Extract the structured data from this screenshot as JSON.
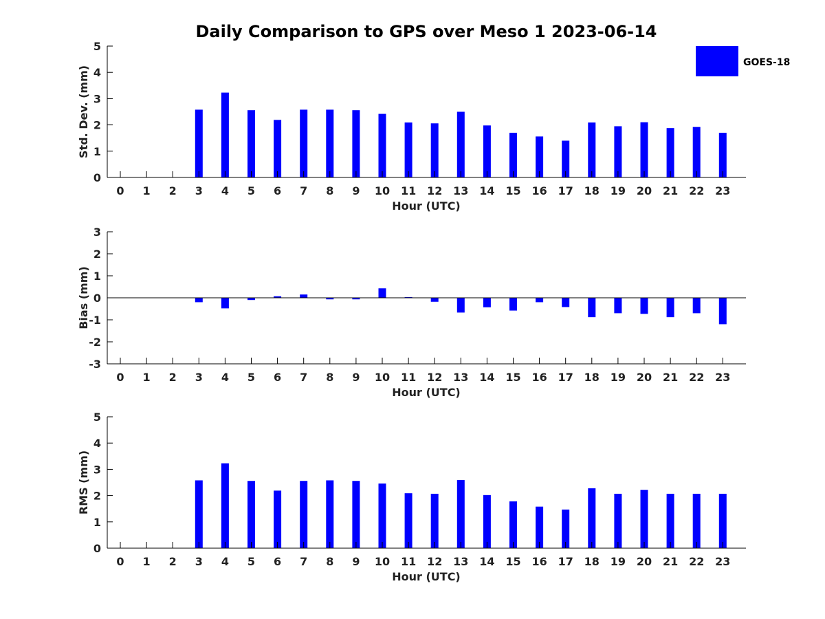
{
  "title": "Daily Comparison to GPS over Meso 1 2023-06-14",
  "legend": {
    "label": "GOES-18",
    "color": "#0000ff"
  },
  "chart_data": [
    {
      "type": "bar",
      "ylabel": "Std. Dev. (mm)",
      "xlabel": "Hour (UTC)",
      "ylim": [
        0,
        5
      ],
      "yticks": [
        0,
        1,
        2,
        3,
        4,
        5
      ],
      "categories": [
        "0",
        "1",
        "2",
        "3",
        "4",
        "5",
        "6",
        "7",
        "8",
        "9",
        "10",
        "11",
        "12",
        "13",
        "14",
        "15",
        "16",
        "17",
        "18",
        "19",
        "20",
        "21",
        "22",
        "23"
      ],
      "series": [
        {
          "name": "GOES-18",
          "color": "#0000ff",
          "values": [
            null,
            null,
            null,
            2.58,
            3.23,
            2.56,
            2.19,
            2.58,
            2.58,
            2.56,
            2.42,
            2.09,
            2.06,
            2.5,
            1.98,
            1.7,
            1.56,
            1.4,
            2.09,
            1.95,
            2.1,
            1.88,
            1.92,
            1.7
          ]
        }
      ]
    },
    {
      "type": "bar",
      "ylabel": "Bias (mm)",
      "xlabel": "Hour (UTC)",
      "ylim": [
        -3,
        3
      ],
      "yticks": [
        -3,
        -2,
        -1,
        0,
        1,
        2,
        3
      ],
      "categories": [
        "0",
        "1",
        "2",
        "3",
        "4",
        "5",
        "6",
        "7",
        "8",
        "9",
        "10",
        "11",
        "12",
        "13",
        "14",
        "15",
        "16",
        "17",
        "18",
        "19",
        "20",
        "21",
        "22",
        "23"
      ],
      "series": [
        {
          "name": "GOES-18",
          "color": "#0000ff",
          "values": [
            null,
            null,
            null,
            -0.2,
            -0.48,
            -0.1,
            0.07,
            0.15,
            -0.07,
            -0.07,
            0.43,
            0.03,
            -0.18,
            -0.67,
            -0.43,
            -0.58,
            -0.2,
            -0.42,
            -0.88,
            -0.7,
            -0.73,
            -0.88,
            -0.7,
            -1.2
          ]
        }
      ]
    },
    {
      "type": "bar",
      "ylabel": "RMS (mm)",
      "xlabel": "Hour (UTC)",
      "ylim": [
        0,
        5
      ],
      "yticks": [
        0,
        1,
        2,
        3,
        4,
        5
      ],
      "categories": [
        "0",
        "1",
        "2",
        "3",
        "4",
        "5",
        "6",
        "7",
        "8",
        "9",
        "10",
        "11",
        "12",
        "13",
        "14",
        "15",
        "16",
        "17",
        "18",
        "19",
        "20",
        "21",
        "22",
        "23"
      ],
      "series": [
        {
          "name": "GOES-18",
          "color": "#0000ff",
          "values": [
            null,
            null,
            null,
            2.58,
            3.23,
            2.56,
            2.19,
            2.56,
            2.58,
            2.56,
            2.46,
            2.09,
            2.07,
            2.59,
            2.02,
            1.78,
            1.58,
            1.47,
            2.28,
            2.07,
            2.22,
            2.07,
            2.07,
            2.07
          ]
        }
      ]
    }
  ]
}
